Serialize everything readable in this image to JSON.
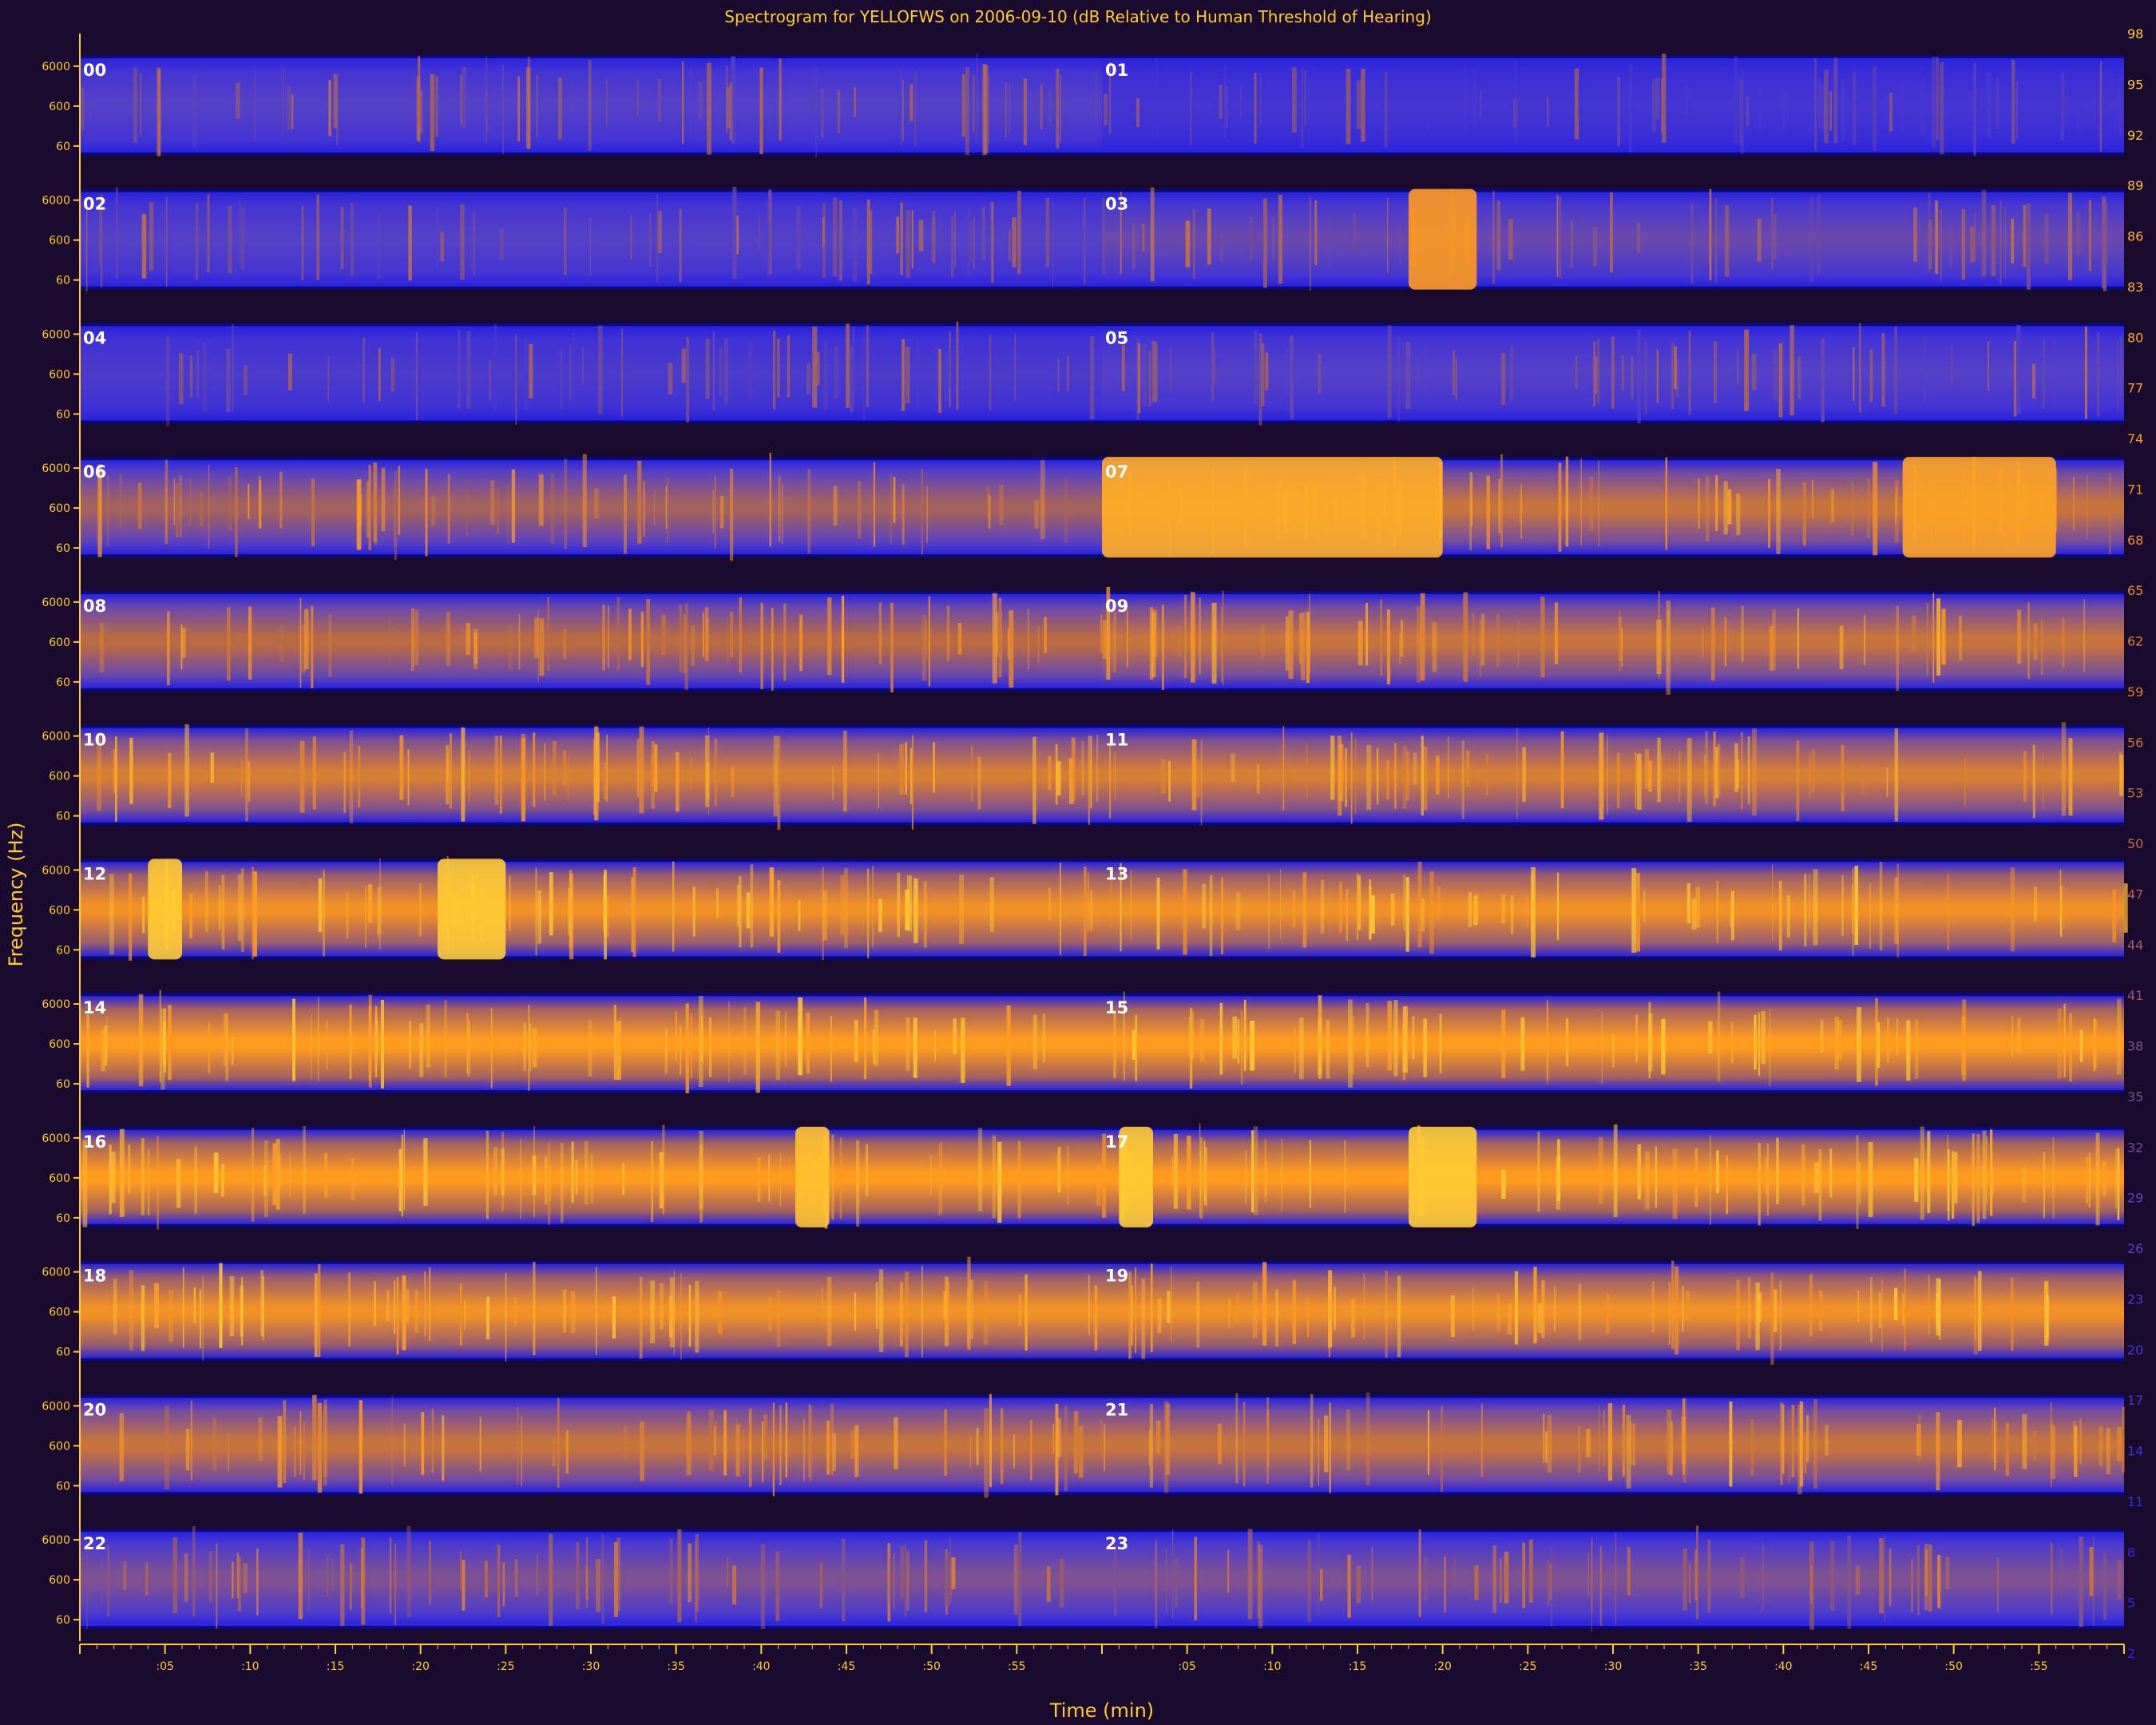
{
  "chart_data": {
    "type": "heatmap",
    "title": "Spectrogram for YELLOFWS on 2006-09-10 (dB Relative to Human Threshold of Hearing)",
    "xlabel": "Time (min)",
    "ylabel": "Frequency (Hz)",
    "x_tick_labels": [
      ":05",
      ":10",
      ":15",
      ":20",
      ":25",
      ":30",
      ":35",
      ":40",
      ":45",
      ":50",
      ":55"
    ],
    "y_tick_labels": [
      "6000",
      "600",
      "60"
    ],
    "hour_labels": [
      "00",
      "01",
      "02",
      "03",
      "04",
      "05",
      "06",
      "07",
      "08",
      "09",
      "10",
      "11",
      "12",
      "13",
      "14",
      "15",
      "16",
      "17",
      "18",
      "19",
      "20",
      "21",
      "22",
      "23"
    ],
    "colorbar_ticks": [
      "98",
      "95",
      "92",
      "89",
      "86",
      "83",
      "80",
      "77",
      "74",
      "71",
      "68",
      "65",
      "62",
      "59",
      "56",
      "53",
      "50",
      "47",
      "44",
      "41",
      "38",
      "35",
      "32",
      "29",
      "26",
      "23",
      "20",
      "17",
      "14",
      "11",
      "8",
      "5",
      "2"
    ],
    "colorbar_colors": [
      "#ffcc33",
      "#ff9a1f",
      "#b86a44",
      "#5540c8",
      "#2a23e0"
    ],
    "row_intensity": [
      0.25,
      0.15,
      0.25,
      0.3,
      0.2,
      0.25,
      0.45,
      0.55,
      0.5,
      0.55,
      0.6,
      0.6,
      0.7,
      0.7,
      0.75,
      0.75,
      0.75,
      0.75,
      0.7,
      0.7,
      0.55,
      0.55,
      0.35,
      0.35
    ],
    "events": [
      {
        "hour": 3,
        "start_min": 18,
        "end_min": 22,
        "level": 0.75
      },
      {
        "hour": 7,
        "start_min": 0,
        "end_min": 20,
        "level": 0.85
      },
      {
        "hour": 7,
        "start_min": 47,
        "end_min": 56,
        "level": 0.8
      },
      {
        "hour": 12,
        "start_min": 4,
        "end_min": 6,
        "level": 1.0
      },
      {
        "hour": 12,
        "start_min": 21,
        "end_min": 25,
        "level": 1.0
      },
      {
        "hour": 16,
        "start_min": 42,
        "end_min": 44,
        "level": 0.95
      },
      {
        "hour": 17,
        "start_min": 1,
        "end_min": 3,
        "level": 1.0
      },
      {
        "hour": 17,
        "start_min": 18,
        "end_min": 22,
        "level": 1.0
      }
    ],
    "colors": {
      "background": "#1a0a2e",
      "band_base": "#0a0a7a",
      "axis": "#ffcc33"
    }
  }
}
